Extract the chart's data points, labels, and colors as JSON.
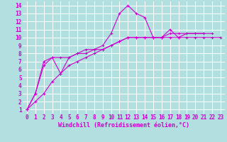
{
  "background_color": "#b2e0e0",
  "grid_color": "#ffffff",
  "line_color": "#cc00cc",
  "xlabel": "Windchill (Refroidissement éolien,°C)",
  "xlabel_fontsize": 6,
  "tick_fontsize": 5.5,
  "xlim": [
    -0.5,
    23.5
  ],
  "ylim": [
    0.5,
    14.5
  ],
  "xticks": [
    0,
    1,
    2,
    3,
    4,
    5,
    6,
    7,
    8,
    9,
    10,
    11,
    12,
    13,
    14,
    15,
    16,
    17,
    18,
    19,
    20,
    21,
    22,
    23
  ],
  "yticks": [
    1,
    2,
    3,
    4,
    5,
    6,
    7,
    8,
    9,
    10,
    11,
    12,
    13,
    14
  ],
  "series": [
    [
      1,
      3,
      6.5,
      7.5,
      5.5,
      7.5,
      8,
      8.5,
      8.5,
      9,
      10.5,
      13,
      14,
      13,
      12.5,
      10,
      10,
      11,
      10,
      10.5,
      10.5,
      10.5,
      10.5
    ],
    [
      1,
      3,
      7,
      7.5,
      7.5,
      7.5,
      8,
      8,
      8.5,
      8.5,
      9,
      9.5,
      10,
      10,
      10,
      10,
      10,
      10.5,
      10.5,
      10.5,
      10.5,
      10.5
    ],
    [
      1,
      2,
      3,
      4.5,
      5.5,
      6.5,
      7,
      7.5,
      8,
      8.5,
      9,
      9.5,
      10,
      10,
      10,
      10,
      10,
      10,
      10,
      10,
      10,
      10,
      10,
      10
    ]
  ],
  "series_x": [
    [
      0,
      1,
      2,
      3,
      4,
      5,
      6,
      7,
      8,
      9,
      10,
      11,
      12,
      13,
      14,
      15,
      16,
      17,
      18,
      19,
      20,
      21,
      22
    ],
    [
      0,
      1,
      2,
      3,
      4,
      5,
      6,
      7,
      8,
      9,
      10,
      11,
      12,
      13,
      14,
      15,
      16,
      17,
      18,
      19,
      20,
      21
    ],
    [
      0,
      1,
      2,
      3,
      4,
      5,
      6,
      7,
      8,
      9,
      10,
      11,
      12,
      13,
      14,
      15,
      16,
      17,
      18,
      19,
      20,
      21,
      22,
      23
    ]
  ]
}
